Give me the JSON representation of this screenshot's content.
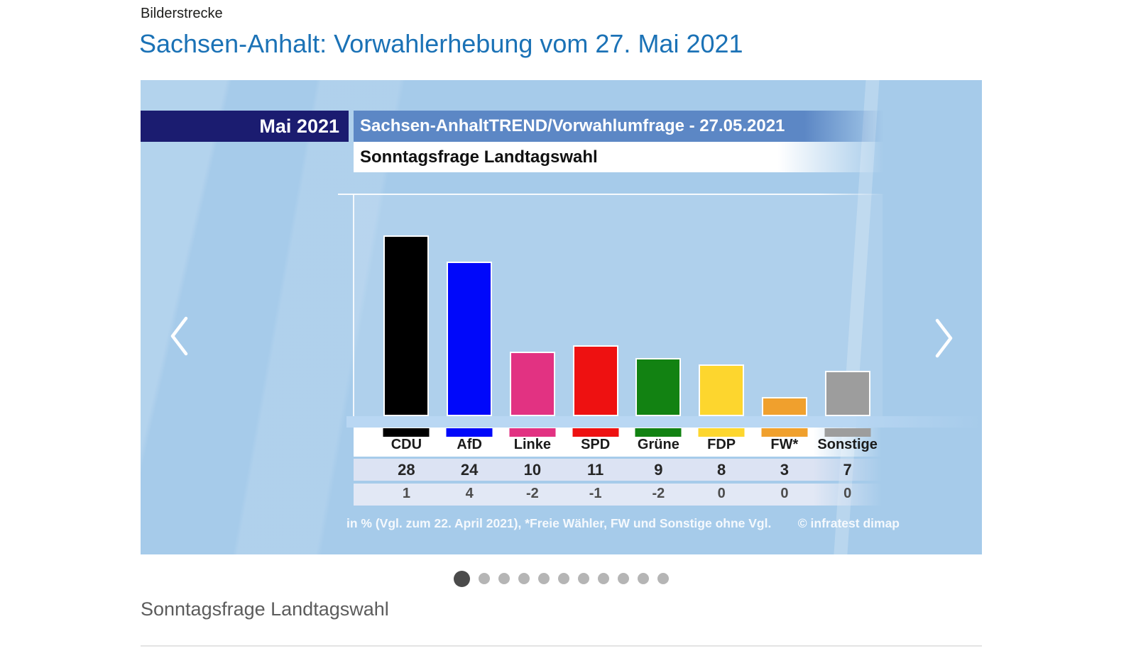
{
  "page": {
    "kicker": "Bilderstrecke",
    "title": "Sachsen-Anhalt: Vorwahlerhebung vom 27. Mai 2021",
    "caption": "Sonntagsfrage Landtagswahl"
  },
  "carousel": {
    "dot_count": 11,
    "active_index": 0
  },
  "chart_data": {
    "type": "bar",
    "date_label": "Mai 2021",
    "source_label": "Sachsen-AnhaltTREND/Vorwahlumfrage - 27.05.2021",
    "title": "Sonntagsfrage Landtagswahl",
    "footnote": "in % (Vgl. zum 22. April 2021), *Freie Wähler, FW und Sonstige ohne Vgl.",
    "copyright": "© infratest dimap",
    "unit": "%",
    "ylim": [
      0,
      30
    ],
    "categories": [
      "CDU",
      "AfD",
      "Linke",
      "SPD",
      "Grüne",
      "FDP",
      "FW*",
      "Sonstige"
    ],
    "values": [
      28,
      24,
      10,
      11,
      9,
      8,
      3,
      7
    ],
    "changes": [
      1,
      4,
      -2,
      -1,
      -2,
      0,
      0,
      0
    ],
    "colors": [
      "#000000",
      "#0008fa",
      "#e23282",
      "#ee1111",
      "#128212",
      "#fdd62e",
      "#f0a02d",
      "#9d9d9d"
    ],
    "accent_navy": "#1b1c70",
    "accent_blue": "#5c87c5",
    "background_blue": "#a6cbea"
  }
}
